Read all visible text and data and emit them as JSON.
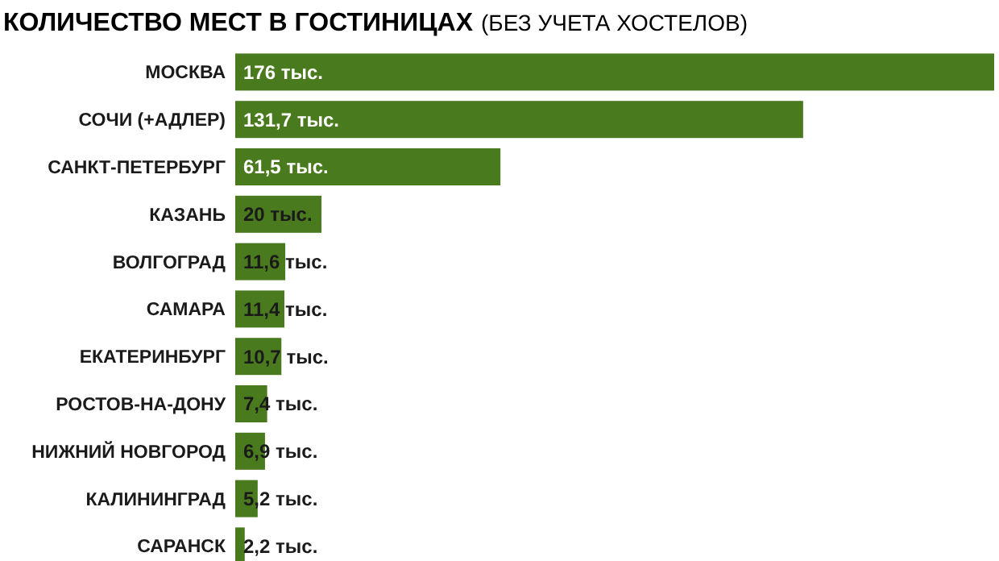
{
  "chart_data": {
    "type": "bar",
    "orientation": "horizontal",
    "title": "КОЛИЧЕСТВО МЕСТ В ГОСТИНИЦАХ",
    "subtitle": "(БЕЗ УЧЕТА ХОСТЕЛОВ)",
    "categories": [
      "МОСКВА",
      "СОЧИ (+АДЛЕР)",
      "САНКТ-ПЕТЕРБУРГ",
      "КАЗАНЬ",
      "ВОЛГОГРАД",
      "САМАРА",
      "ЕКАТЕРИНБУРГ",
      "РОСТОВ-НА-ДОНУ",
      "НИЖНИЙ НОВГОРОД",
      "КАЛИНИНГРАД",
      "САРАНСК"
    ],
    "values": [
      176,
      131.7,
      61.5,
      20,
      11.6,
      11.4,
      10.7,
      7.4,
      6.9,
      5.2,
      2.2
    ],
    "value_labels": [
      "176 тыс.",
      "131,7 тыс.",
      "61,5 тыс.",
      "20 тыс.",
      "11,6 тыс.",
      "11,4 тыс.",
      "10,7 тыс.",
      "7,4 тыс.",
      "6,9 тыс.",
      "5,2 тыс.",
      "2,2 тыс."
    ],
    "color": "#4a7a1e"
  }
}
